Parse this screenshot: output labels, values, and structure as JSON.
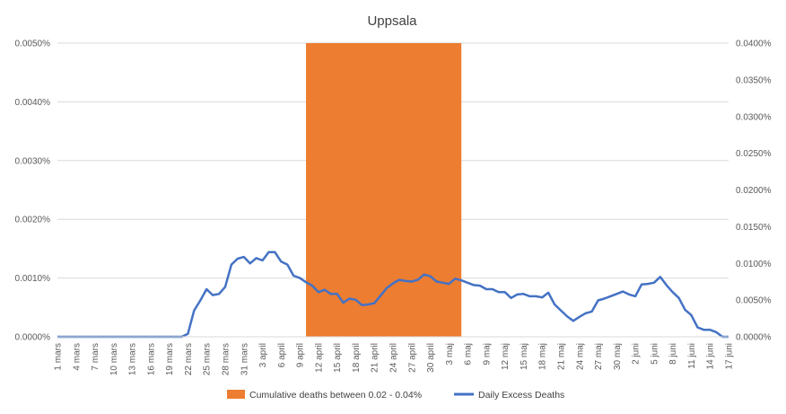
{
  "chart_data": {
    "type": "line",
    "title": "Uppsala",
    "xlabel": "",
    "ylabel": "",
    "grid": true,
    "legend_position": "bottom",
    "x_tick_labels": [
      "1 mars",
      "4 mars",
      "7 mars",
      "10 mars",
      "13 mars",
      "16 mars",
      "19 mars",
      "22 mars",
      "25 mars",
      "28 mars",
      "31 mars",
      "3 april",
      "6 april",
      "9 april",
      "12 april",
      "15 april",
      "18 april",
      "21 april",
      "24 april",
      "27 april",
      "30 april",
      "3 maj",
      "6 maj",
      "9 maj",
      "12 maj",
      "15 maj",
      "18 maj",
      "21 maj",
      "24 maj",
      "27 maj",
      "30 maj",
      "2 juni",
      "5 juni",
      "8 juni",
      "11 juni",
      "14 juni",
      "17 juni"
    ],
    "y_left": {
      "min": 0,
      "max": 5e-05,
      "ticks": [
        "0.0000%",
        "0.0010%",
        "0.0020%",
        "0.0030%",
        "0.0040%",
        "0.0050%"
      ]
    },
    "y_right": {
      "min": 0,
      "max": 0.0004,
      "ticks": [
        "0.0000%",
        "0.0050%",
        "0.0100%",
        "0.0150%",
        "0.0200%",
        "0.0250%",
        "0.0300%",
        "0.0350%",
        "0.0400%"
      ]
    },
    "band": {
      "name": "Cumulative deaths between 0.02 - 0.04%",
      "color": "#ED7D31",
      "x_start": "10 april",
      "x_end": "5 maj",
      "y_from": 0,
      "y_to": 5e-05
    },
    "series": [
      {
        "name": "Daily Excess Deaths",
        "color": "#4472C4",
        "axis": "left",
        "values": [
          0,
          0,
          0,
          0,
          0,
          0,
          0,
          0,
          0,
          0,
          0,
          0,
          0,
          0,
          0,
          0,
          0,
          0,
          0,
          0,
          0,
          5e-07,
          4.5e-06,
          6.2e-06,
          8.1e-06,
          7.1e-06,
          7.3e-06,
          8.5e-06,
          1.23e-05,
          1.33e-05,
          1.36e-05,
          1.25e-05,
          1.34e-05,
          1.3e-05,
          1.44e-05,
          1.44e-05,
          1.28e-05,
          1.23e-05,
          1.04e-05,
          1e-05,
          9.3e-06,
          8.7e-06,
          7.6e-06,
          8e-06,
          7.3e-06,
          7.3e-06,
          5.8e-06,
          6.5e-06,
          6.3e-06,
          5.4e-06,
          5.5e-06,
          5.7e-06,
          7e-06,
          8.3e-06,
          9.1e-06,
          9.7e-06,
          9.5e-06,
          9.4e-06,
          9.7e-06,
          1.06e-05,
          1.03e-05,
          9.4e-06,
          9.2e-06,
          9e-06,
          9.9e-06,
          9.6e-06,
          9.2e-06,
          8.8e-06,
          8.7e-06,
          8.1e-06,
          8.1e-06,
          7.6e-06,
          7.6e-06,
          6.6e-06,
          7.2e-06,
          7.3e-06,
          6.9e-06,
          6.9e-06,
          6.7e-06,
          7.5e-06,
          5.5e-06,
          4.5e-06,
          3.5e-06,
          2.7e-06,
          3.4e-06,
          4e-06,
          4.3e-06,
          6.2e-06,
          6.5e-06,
          6.9e-06,
          7.3e-06,
          7.7e-06,
          7.2e-06,
          6.9e-06,
          8.9e-06,
          9e-06,
          9.2e-06,
          1.02e-05,
          8.8e-06,
          7.6e-06,
          6.6e-06,
          4.6e-06,
          3.7e-06,
          1.6e-06,
          1.2e-06,
          1.2e-06,
          8e-07,
          0,
          0
        ]
      }
    ]
  }
}
